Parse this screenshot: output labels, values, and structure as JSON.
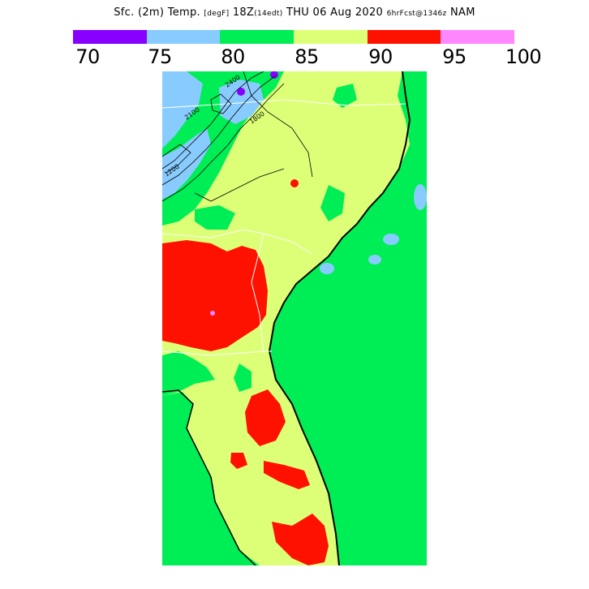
{
  "title": {
    "field": "Sfc. (2m) Temp.",
    "units": "[degF]",
    "valid": "18Z",
    "local": "(14edt)",
    "date": "THU 06 Aug 2020",
    "forecast": "6hrFcst@1346z",
    "model": "NAM"
  },
  "legend": {
    "bins": [
      {
        "color": "#8800ff",
        "from": 70,
        "to": 75
      },
      {
        "color": "#88ccff",
        "from": 75,
        "to": 80
      },
      {
        "color": "#00ee55",
        "from": 80,
        "to": 85
      },
      {
        "color": "#ddff77",
        "from": 85,
        "to": 90
      },
      {
        "color": "#ff1100",
        "from": 90,
        "to": 95
      },
      {
        "color": "#ff88ff",
        "from": 95,
        "to": 100
      }
    ],
    "ticks": [
      "70",
      "75",
      "80",
      "85",
      "90",
      "95",
      "100"
    ]
  },
  "map": {
    "region": "Southeastern US / Florida",
    "contour_labels": [
      "2400",
      "2100",
      "1800",
      "1200"
    ]
  }
}
